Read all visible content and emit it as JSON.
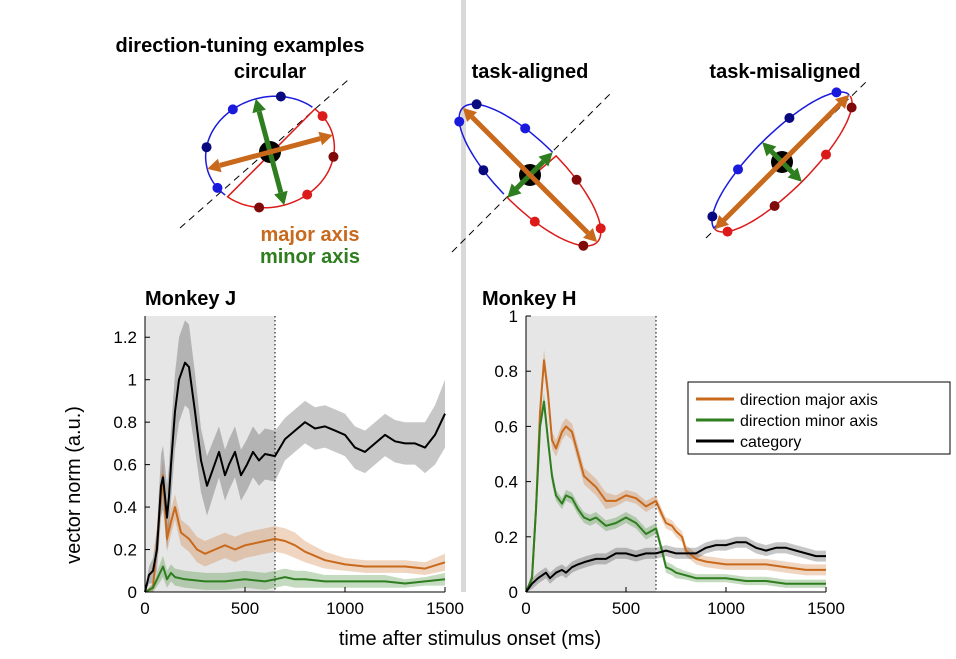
{
  "figure": {
    "top_title": "direction-tuning examples",
    "examples": [
      {
        "title": "circular"
      },
      {
        "title": "task-aligned"
      },
      {
        "title": "task-misaligned"
      }
    ],
    "axis_legend": {
      "major": "major axis",
      "minor": "minor axis"
    },
    "colors": {
      "major": "#c8691c",
      "minor": "#2e7d1e",
      "category": "#000000",
      "shade": "#e6e6e6",
      "blue": "#1a1adc",
      "red": "#dc1a1a",
      "dark_blue": "#0a0a80",
      "dark_red": "#800a0a",
      "divider": "#d9d9d9"
    }
  },
  "chart_data": [
    {
      "type": "line",
      "title": "Monkey J",
      "xlabel": "time after stimulus onset (ms)",
      "ylabel": "vector norm (a.u.)",
      "xlim": [
        0,
        1500
      ],
      "ylim": [
        0,
        1.3
      ],
      "xticks": [
        "0",
        "500",
        "1000",
        "1500"
      ],
      "yticks": [
        "0",
        "0.2",
        "0.4",
        "0.6",
        "0.8",
        "1",
        "1.2"
      ],
      "shaded_interval": [
        0,
        650
      ],
      "series": [
        {
          "key": "major",
          "color": "#c8691c",
          "x": [
            0,
            40,
            70,
            90,
            110,
            130,
            150,
            180,
            220,
            260,
            300,
            350,
            400,
            450,
            500,
            550,
            600,
            650,
            700,
            750,
            800,
            900,
            1000,
            1100,
            1200,
            1300,
            1400,
            1500
          ],
          "y": [
            0,
            0.02,
            0.35,
            0.55,
            0.25,
            0.33,
            0.4,
            0.28,
            0.25,
            0.2,
            0.18,
            0.2,
            0.22,
            0.2,
            0.22,
            0.23,
            0.24,
            0.25,
            0.24,
            0.22,
            0.19,
            0.15,
            0.13,
            0.12,
            0.12,
            0.12,
            0.11,
            0.14
          ],
          "band": [
            0,
            0.02,
            0.08,
            0.08,
            0.06,
            0.06,
            0.06,
            0.06,
            0.06,
            0.06,
            0.06,
            0.06,
            0.06,
            0.06,
            0.06,
            0.06,
            0.06,
            0.06,
            0.06,
            0.06,
            0.05,
            0.04,
            0.03,
            0.03,
            0.03,
            0.03,
            0.03,
            0.04
          ]
        },
        {
          "key": "minor",
          "color": "#2e7d1e",
          "x": [
            0,
            40,
            70,
            90,
            110,
            130,
            150,
            200,
            300,
            400,
            500,
            600,
            650,
            700,
            750,
            800,
            900,
            1000,
            1100,
            1200,
            1300,
            1400,
            1500
          ],
          "y": [
            0,
            0.02,
            0.08,
            0.12,
            0.06,
            0.09,
            0.07,
            0.06,
            0.05,
            0.05,
            0.06,
            0.05,
            0.06,
            0.07,
            0.06,
            0.06,
            0.05,
            0.05,
            0.05,
            0.05,
            0.04,
            0.05,
            0.06
          ],
          "band": [
            0,
            0.02,
            0.04,
            0.05,
            0.04,
            0.04,
            0.04,
            0.04,
            0.04,
            0.04,
            0.04,
            0.04,
            0.04,
            0.04,
            0.04,
            0.04,
            0.03,
            0.03,
            0.03,
            0.03,
            0.02,
            0.02,
            0.03
          ]
        },
        {
          "key": "category",
          "color": "#000000",
          "x": [
            0,
            20,
            40,
            60,
            80,
            90,
            100,
            110,
            120,
            130,
            150,
            170,
            200,
            220,
            250,
            280,
            310,
            340,
            370,
            400,
            420,
            450,
            480,
            510,
            540,
            570,
            600,
            650,
            700,
            750,
            800,
            850,
            900,
            950,
            1000,
            1050,
            1100,
            1150,
            1200,
            1250,
            1300,
            1350,
            1400,
            1450,
            1500
          ],
          "y": [
            0,
            0.08,
            0.1,
            0.2,
            0.5,
            0.54,
            0.45,
            0.35,
            0.45,
            0.6,
            0.85,
            1.0,
            1.08,
            1.06,
            0.85,
            0.62,
            0.5,
            0.58,
            0.66,
            0.55,
            0.6,
            0.66,
            0.55,
            0.6,
            0.66,
            0.62,
            0.65,
            0.64,
            0.72,
            0.76,
            0.8,
            0.77,
            0.78,
            0.76,
            0.74,
            0.68,
            0.66,
            0.7,
            0.74,
            0.71,
            0.7,
            0.7,
            0.68,
            0.74,
            0.84
          ],
          "band": [
            0,
            0.04,
            0.06,
            0.1,
            0.15,
            0.15,
            0.15,
            0.15,
            0.15,
            0.17,
            0.18,
            0.2,
            0.2,
            0.2,
            0.18,
            0.15,
            0.14,
            0.13,
            0.12,
            0.12,
            0.12,
            0.12,
            0.12,
            0.12,
            0.12,
            0.12,
            0.12,
            0.12,
            0.1,
            0.1,
            0.1,
            0.1,
            0.1,
            0.1,
            0.1,
            0.1,
            0.1,
            0.1,
            0.1,
            0.1,
            0.1,
            0.1,
            0.12,
            0.14,
            0.16
          ]
        }
      ]
    },
    {
      "type": "line",
      "title": "Monkey H",
      "xlabel": "",
      "ylabel": "",
      "xlim": [
        0,
        1500
      ],
      "ylim": [
        0,
        1
      ],
      "xticks": [
        "0",
        "500",
        "1000",
        "1500"
      ],
      "yticks": [
        "0",
        "0.2",
        "0.4",
        "0.6",
        "0.8",
        "1"
      ],
      "shaded_interval": [
        0,
        650
      ],
      "legend": {
        "position": "top-right",
        "entries": [
          "direction major axis",
          "direction minor axis",
          "category"
        ]
      },
      "series": [
        {
          "key": "major",
          "color": "#c8691c",
          "x": [
            0,
            30,
            50,
            70,
            90,
            110,
            130,
            150,
            180,
            200,
            230,
            260,
            290,
            320,
            350,
            400,
            450,
            500,
            550,
            600,
            650,
            680,
            700,
            730,
            750,
            780,
            800,
            850,
            900,
            1000,
            1100,
            1200,
            1300,
            1400,
            1500
          ],
          "y": [
            0,
            0.05,
            0.3,
            0.65,
            0.84,
            0.72,
            0.55,
            0.52,
            0.58,
            0.6,
            0.58,
            0.5,
            0.42,
            0.4,
            0.38,
            0.33,
            0.33,
            0.35,
            0.34,
            0.31,
            0.33,
            0.28,
            0.25,
            0.24,
            0.22,
            0.2,
            0.15,
            0.12,
            0.11,
            0.1,
            0.1,
            0.1,
            0.09,
            0.08,
            0.08
          ],
          "band": [
            0,
            0.02,
            0.03,
            0.04,
            0.04,
            0.04,
            0.03,
            0.03,
            0.03,
            0.03,
            0.03,
            0.03,
            0.03,
            0.03,
            0.03,
            0.03,
            0.02,
            0.02,
            0.02,
            0.02,
            0.02,
            0.02,
            0.02,
            0.02,
            0.02,
            0.02,
            0.02,
            0.02,
            0.02,
            0.02,
            0.02,
            0.02,
            0.02,
            0.02,
            0.02
          ]
        },
        {
          "key": "minor",
          "color": "#2e7d1e",
          "x": [
            0,
            30,
            50,
            70,
            90,
            110,
            130,
            150,
            180,
            200,
            230,
            260,
            290,
            320,
            350,
            400,
            450,
            500,
            550,
            600,
            650,
            680,
            700,
            730,
            750,
            800,
            850,
            900,
            1000,
            1100,
            1200,
            1300,
            1400,
            1500
          ],
          "y": [
            0,
            0.05,
            0.3,
            0.6,
            0.69,
            0.55,
            0.42,
            0.35,
            0.32,
            0.35,
            0.34,
            0.3,
            0.27,
            0.26,
            0.27,
            0.24,
            0.25,
            0.27,
            0.25,
            0.21,
            0.23,
            0.15,
            0.09,
            0.08,
            0.07,
            0.06,
            0.05,
            0.05,
            0.05,
            0.04,
            0.04,
            0.03,
            0.03,
            0.03
          ],
          "band": [
            0,
            0.02,
            0.03,
            0.03,
            0.03,
            0.03,
            0.03,
            0.02,
            0.02,
            0.02,
            0.02,
            0.02,
            0.02,
            0.02,
            0.02,
            0.02,
            0.02,
            0.02,
            0.02,
            0.02,
            0.02,
            0.02,
            0.02,
            0.02,
            0.02,
            0.015,
            0.015,
            0.015,
            0.015,
            0.015,
            0.015,
            0.015,
            0.015,
            0.015
          ]
        },
        {
          "key": "category",
          "color": "#000000",
          "x": [
            0,
            30,
            60,
            80,
            100,
            120,
            150,
            180,
            200,
            230,
            260,
            300,
            350,
            400,
            450,
            500,
            550,
            600,
            650,
            700,
            750,
            800,
            850,
            900,
            950,
            1000,
            1050,
            1100,
            1150,
            1200,
            1250,
            1300,
            1350,
            1400,
            1450,
            1500
          ],
          "y": [
            0,
            0.03,
            0.05,
            0.06,
            0.07,
            0.05,
            0.07,
            0.08,
            0.07,
            0.09,
            0.1,
            0.11,
            0.12,
            0.12,
            0.14,
            0.14,
            0.13,
            0.14,
            0.14,
            0.15,
            0.14,
            0.14,
            0.14,
            0.16,
            0.17,
            0.17,
            0.18,
            0.18,
            0.16,
            0.15,
            0.16,
            0.16,
            0.15,
            0.14,
            0.13,
            0.13
          ],
          "band": [
            0,
            0.02,
            0.02,
            0.02,
            0.02,
            0.02,
            0.02,
            0.02,
            0.02,
            0.02,
            0.02,
            0.02,
            0.02,
            0.02,
            0.02,
            0.02,
            0.02,
            0.02,
            0.02,
            0.02,
            0.02,
            0.02,
            0.02,
            0.02,
            0.02,
            0.02,
            0.02,
            0.02,
            0.02,
            0.02,
            0.02,
            0.02,
            0.02,
            0.02,
            0.02,
            0.02
          ]
        }
      ]
    }
  ]
}
